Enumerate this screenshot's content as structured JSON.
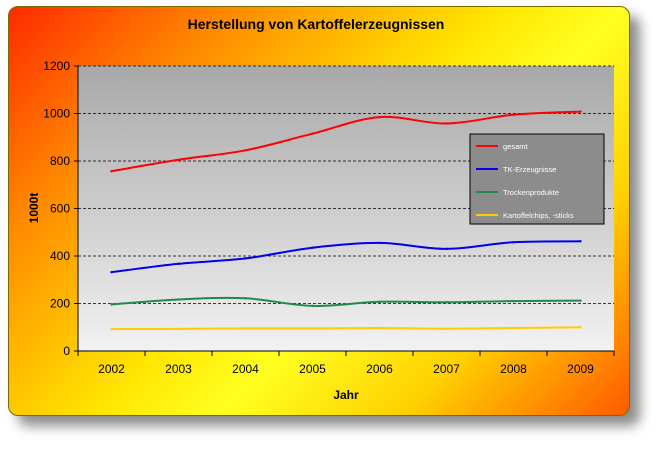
{
  "chart_data": {
    "type": "line",
    "title": "Herstellung von Kartoffelerzeugnissen",
    "xlabel": "Jahr",
    "ylabel": "1000t",
    "ylim": [
      0,
      1200
    ],
    "yticks": [
      0,
      200,
      400,
      600,
      800,
      1000,
      1200
    ],
    "categories": [
      "2002",
      "2003",
      "2004",
      "2005",
      "2006",
      "2007",
      "2008",
      "2009"
    ],
    "grid": true,
    "legend_position": "right",
    "series": [
      {
        "name": "gesamt",
        "color": "#ff0000",
        "values": [
          757,
          805,
          845,
          915,
          985,
          958,
          995,
          1008
        ]
      },
      {
        "name": "TK-Erzeugnisse",
        "color": "#0000ee",
        "values": [
          332,
          367,
          390,
          435,
          455,
          430,
          458,
          462
        ]
      },
      {
        "name": "Trockenprodukte",
        "color": "#1f8a4c",
        "values": [
          196,
          217,
          222,
          190,
          207,
          205,
          210,
          212
        ]
      },
      {
        "name": "Kartoffelchips, -sticks",
        "color": "#ffcc00",
        "values": [
          92,
          93,
          95,
          95,
          97,
          94,
          97,
          100
        ]
      }
    ]
  }
}
